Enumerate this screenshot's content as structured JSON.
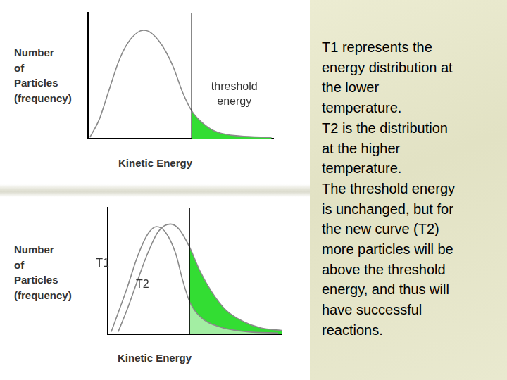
{
  "chart_data": [
    {
      "type": "line",
      "x_label": "Kinetic Energy",
      "y_label": "Number of Particles (frequency)",
      "xlim": [
        0,
        10
      ],
      "ylim": [
        0,
        10
      ],
      "grid": false,
      "tick_labels": false,
      "threshold": 5.6,
      "series": [
        {
          "color": "#33dd33",
          "x": [
            0.1,
            0.6,
            1.1,
            1.7,
            2.3,
            3.0,
            3.4,
            4.0,
            4.6,
            5.1,
            5.6,
            6.3,
            7.0,
            8.2,
            9.9
          ],
          "values": [
            0.1,
            1.5,
            3.7,
            6.3,
            7.9,
            8.6,
            8.4,
            7.4,
            5.7,
            3.7,
            2.2,
            1.1,
            0.5,
            0.2,
            0.1
          ]
        }
      ],
      "annotations": [
        {
          "text": "threshold energy",
          "x": 7.9,
          "y": 3.5
        }
      ]
    },
    {
      "type": "line",
      "x_label": "Kinetic Energy",
      "y_label": "Number of Particles (frequency)",
      "xlim": [
        0,
        10
      ],
      "ylim": [
        0,
        10
      ],
      "grid": false,
      "tick_labels": false,
      "threshold": 4.7,
      "series": [
        {
          "color": "#a3eea3",
          "x": [
            0.2,
            0.6,
            1.1,
            1.7,
            2.3,
            2.8,
            3.3,
            3.9,
            4.3,
            4.7,
            5.3,
            6.4,
            8.0,
            9.8
          ],
          "values": [
            0.2,
            1.7,
            3.6,
            6.1,
            7.9,
            8.5,
            8.1,
            6.4,
            4.3,
            2.6,
            1.4,
            0.6,
            0.2,
            0.1
          ]
        },
        {
          "color": "#33dd33",
          "x": [
            0.6,
            1.1,
            1.7,
            2.3,
            2.9,
            3.6,
            4.1,
            4.7,
            5.3,
            6.0,
            6.8,
            7.8,
            8.8,
            10.0
          ],
          "values": [
            0.2,
            1.9,
            4.2,
            6.4,
            8.1,
            8.7,
            8.3,
            6.9,
            5.0,
            3.3,
            1.9,
            1.0,
            0.5,
            0.3
          ]
        }
      ],
      "annotations": [
        {
          "text": "T1",
          "x": -0.3,
          "y": 5.6
        },
        {
          "text": "T2",
          "x": 2.0,
          "y": 3.9
        }
      ]
    }
  ],
  "side_text": [
    "T1 represents the",
    "energy distribution at",
    "the lower",
    "temperature.",
    "T2 is the distribution",
    "at the higher",
    "temperature.",
    "The threshold energy",
    "is unchanged, but for",
    "the new curve (T2)",
    "more particles will be",
    "above the threshold",
    "energy, and thus will",
    "have successful",
    "reactions."
  ]
}
